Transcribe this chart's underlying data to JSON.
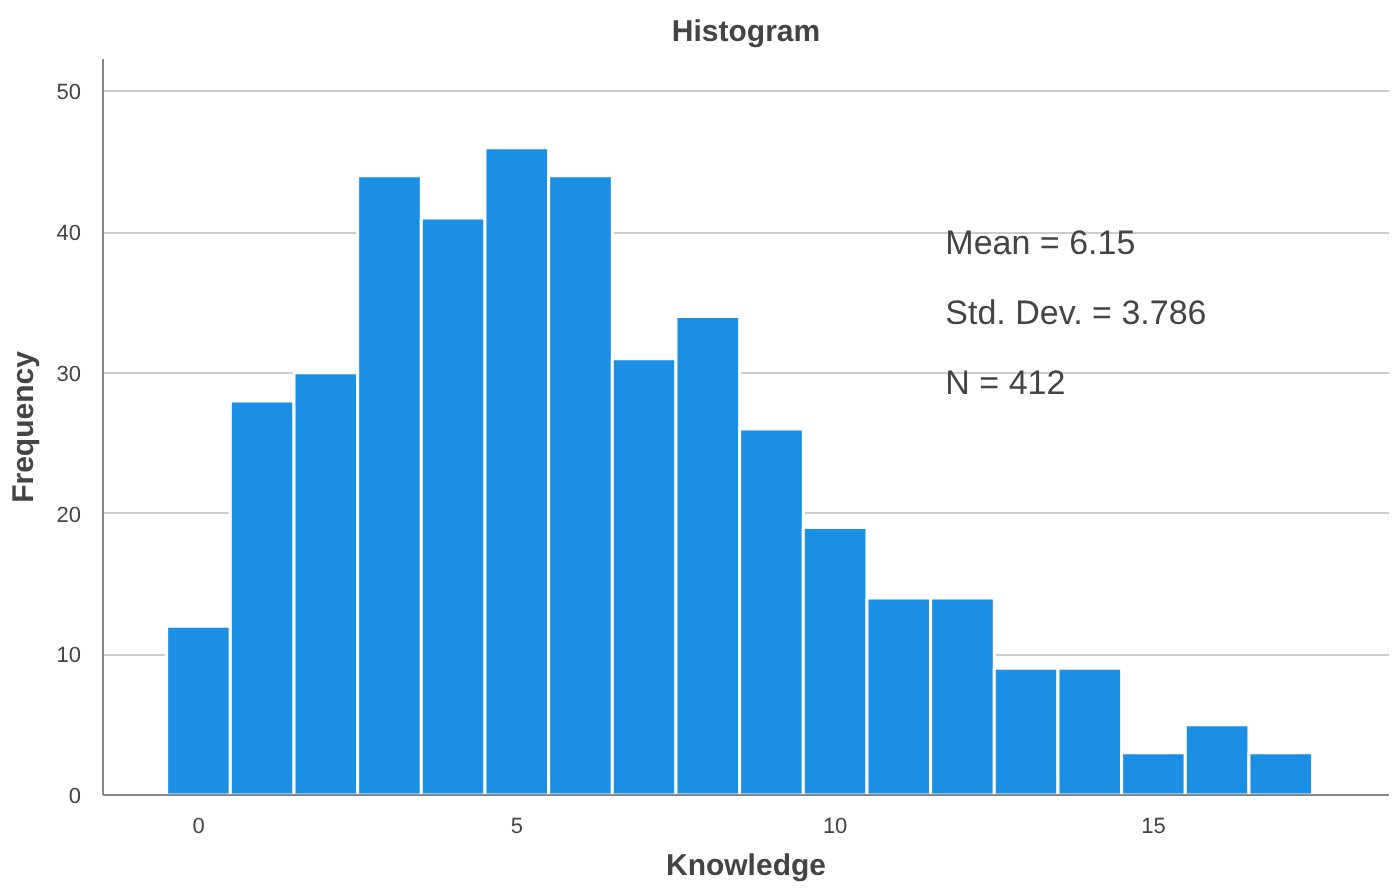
{
  "chart_data": {
    "type": "histogram",
    "title": "Histogram",
    "xlabel": "Knowledge",
    "ylabel": "Frequency",
    "bins": [
      -0.5,
      0.5,
      1.5,
      2.5,
      3.5,
      4.5,
      5.5,
      6.5,
      7.5,
      8.5,
      9.5,
      10.5,
      11.5,
      12.5,
      13.5,
      14.5,
      15.5,
      16.5,
      17.5
    ],
    "values": [
      12,
      28,
      30,
      44,
      41,
      46,
      44,
      31,
      34,
      26,
      19,
      14,
      14,
      9,
      9,
      3,
      5,
      3
    ],
    "color": "#1a8fe3",
    "xlim": [
      -1.5,
      18.7
    ],
    "ylim": [
      0,
      52.3
    ],
    "xticks": [
      0,
      5,
      10,
      15
    ],
    "yticks": [
      0,
      10,
      20,
      30,
      40,
      50
    ],
    "grid": "y",
    "annotations": [
      "Mean = 6.15",
      "Std. Dev. = 3.786",
      "N = 412"
    ]
  }
}
